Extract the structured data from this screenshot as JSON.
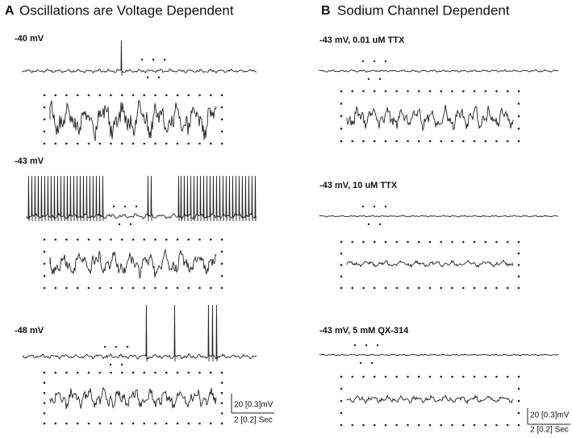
{
  "panels": [
    {
      "letter": "A",
      "title": "Oscillations are Voltage Dependent",
      "traces": [
        {
          "label": "-40 mV"
        },
        {
          "label": "-43 mV"
        },
        {
          "label": "-48 mV"
        }
      ],
      "scale_bar": {
        "amplitude": "20 [0.3]mV",
        "time": "2 [0.2] Sec"
      }
    },
    {
      "letter": "B",
      "title": "Sodium Channel Dependent",
      "traces": [
        {
          "label": "-43 mV, 0.01 uM TTX"
        },
        {
          "label": "-43 mV, 10 uM TTX"
        },
        {
          "label": "-43 mV, 5 mM QX-314"
        }
      ],
      "scale_bar": {
        "amplitude": "20 [0.3]mV",
        "time": "2 [0.2] Sec"
      }
    }
  ]
}
